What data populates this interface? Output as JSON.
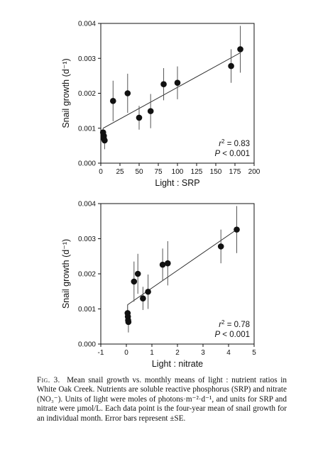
{
  "chart_data": [
    {
      "type": "scatter",
      "title": "",
      "xlabel": "Light : SRP",
      "ylabel": "Snail growth (d⁻¹)",
      "xlim": [
        0,
        200
      ],
      "ylim": [
        0,
        0.004
      ],
      "xticks": [
        "0",
        "25",
        "50",
        "75",
        "100",
        "125",
        "150",
        "175",
        "200"
      ],
      "yticks": [
        "0.000",
        "0.001",
        "0.002",
        "0.003",
        "0.004"
      ],
      "points": [
        {
          "x": 3,
          "y": 0.00088,
          "err": 0.00012
        },
        {
          "x": 4,
          "y": 0.00078,
          "err": 0.00015
        },
        {
          "x": 4,
          "y": 0.0007,
          "err": 0.00012
        },
        {
          "x": 5,
          "y": 0.00065,
          "err": 0.00025
        },
        {
          "x": 16,
          "y": 0.00178,
          "err": 0.00058
        },
        {
          "x": 35,
          "y": 0.002,
          "err": 0.00056
        },
        {
          "x": 50,
          "y": 0.0013,
          "err": 0.00034
        },
        {
          "x": 65,
          "y": 0.00149,
          "err": 0.00049
        },
        {
          "x": 82,
          "y": 0.00226,
          "err": 0.00046
        },
        {
          "x": 100,
          "y": 0.0023,
          "err": 0.00047
        },
        {
          "x": 170,
          "y": 0.00278,
          "err": 0.00048
        },
        {
          "x": 182,
          "y": 0.00326,
          "err": 0.00067
        }
      ],
      "fit_line": {
        "x": [
          3,
          182
        ],
        "y": [
          0.001,
          0.00316
        ]
      },
      "r2_prefix": "r",
      "r2_value": " = 0.83",
      "p_prefix": "P",
      "p_value": " < 0.001"
    },
    {
      "type": "scatter",
      "title": "",
      "xlabel": "Light : nitrate",
      "ylabel": "Snail growth (d⁻¹)",
      "xlim": [
        -1,
        5
      ],
      "ylim": [
        0,
        0.004
      ],
      "xticks": [
        "-1",
        "0",
        "1",
        "2",
        "3",
        "4",
        "5"
      ],
      "yticks": [
        "0.000",
        "0.001",
        "0.002",
        "0.003",
        "0.004"
      ],
      "points": [
        {
          "x": 0.05,
          "y": 0.00088,
          "err": 0.0001
        },
        {
          "x": 0.06,
          "y": 0.00078,
          "err": 0.00014
        },
        {
          "x": 0.07,
          "y": 0.00068,
          "err": 0.00012
        },
        {
          "x": 0.08,
          "y": 0.00063,
          "err": 0.0003
        },
        {
          "x": 0.3,
          "y": 0.00178,
          "err": 0.00057
        },
        {
          "x": 0.45,
          "y": 0.002,
          "err": 0.00057
        },
        {
          "x": 0.65,
          "y": 0.0013,
          "err": 0.00033
        },
        {
          "x": 0.85,
          "y": 0.00149,
          "err": 0.00049
        },
        {
          "x": 1.42,
          "y": 0.00226,
          "err": 0.00046
        },
        {
          "x": 1.62,
          "y": 0.0023,
          "err": 0.00063
        },
        {
          "x": 3.7,
          "y": 0.00278,
          "err": 0.00048
        },
        {
          "x": 4.32,
          "y": 0.00326,
          "err": 0.00067
        }
      ],
      "fit_line": {
        "x": [
          0.05,
          0.05,
          4.32
        ],
        "y": [
          0.0009,
          0.00112,
          0.00326
        ]
      },
      "r2_prefix": "r",
      "r2_value": " = 0.78",
      "p_prefix": "P",
      "p_value": " < 0.001"
    }
  ],
  "caption": {
    "label": "Fig. 3.",
    "text": "Mean snail growth vs. monthly means of light : nutrient ratios in White Oak Creek. Nutrients are soluble reactive phosphorus (SRP) and nitrate (NO₃⁻). Units of light were moles of photons·m⁻²·d⁻¹, and units for SRP and nitrate were µmol/L. Each data point is the four-year mean of snail growth for an individual month. Error bars represent ±SE."
  }
}
